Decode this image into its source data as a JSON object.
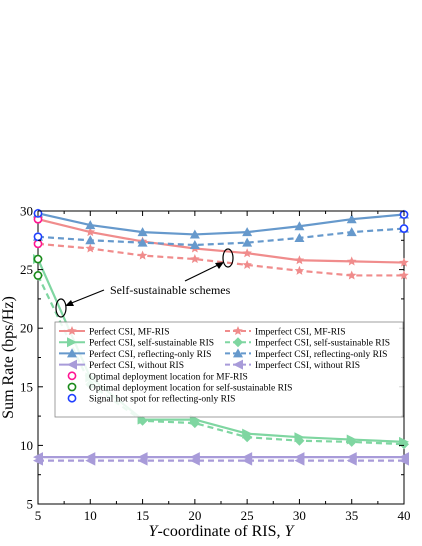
{
  "chart_data": {
    "type": "line",
    "xlabel_italic": "Y",
    "xlabel_rest": "-coordinate of RIS, ",
    "xlabel_italic_end": "Y",
    "ylabel": "Sum Rate (bps/Hz)",
    "xlim": [
      5,
      40
    ],
    "ylim": [
      5,
      30
    ],
    "xticks": [
      5,
      10,
      15,
      20,
      25,
      30,
      35,
      40
    ],
    "yticks": [
      5,
      10,
      15,
      20,
      25,
      30
    ],
    "grid": false,
    "legend_placement": "center",
    "annotation": "Self-sustainable schemes",
    "x": [
      5,
      10,
      15,
      20,
      25,
      30,
      35,
      40
    ],
    "series": [
      {
        "name": "Perfect CSI, MF-RIS",
        "color": "#f08c8c",
        "dash": false,
        "marker": "star",
        "values": [
          29.3,
          28.2,
          27.4,
          26.8,
          26.4,
          25.8,
          25.7,
          25.6
        ]
      },
      {
        "name": "Imperfect CSI, MF-RIS",
        "color": "#f08c8c",
        "dash": true,
        "marker": "star",
        "values": [
          27.2,
          26.8,
          26.2,
          25.9,
          25.4,
          24.9,
          24.5,
          24.5
        ]
      },
      {
        "name": "Perfect CSI, self-sustainable RIS",
        "color": "#7fd6a1",
        "dash": false,
        "marker": "tri-right",
        "values": [
          25.9,
          15.8,
          12.2,
          12.2,
          11.0,
          10.7,
          10.5,
          10.3
        ]
      },
      {
        "name": "Imperfect CSI, self-sustainable RIS",
        "color": "#7fd6a1",
        "dash": true,
        "marker": "diamond",
        "values": [
          24.5,
          15.2,
          12.1,
          11.9,
          10.7,
          10.4,
          10.3,
          10.1
        ]
      },
      {
        "name": "Perfect CSI, reflecting-only RIS",
        "color": "#6699cc",
        "dash": false,
        "marker": "tri-up",
        "values": [
          29.8,
          28.8,
          28.2,
          28.0,
          28.2,
          28.7,
          29.3,
          29.7
        ]
      },
      {
        "name": "Imperfect CSI, reflecting-only RIS",
        "color": "#6699cc",
        "dash": true,
        "marker": "tri-up",
        "values": [
          27.8,
          27.5,
          27.3,
          27.1,
          27.3,
          27.7,
          28.2,
          28.5
        ]
      },
      {
        "name": "Perfect CSI, without RIS",
        "color": "#a89bd9",
        "dash": false,
        "marker": "tri-left",
        "values": [
          9.0,
          9.0,
          9.0,
          9.0,
          9.0,
          9.0,
          9.0,
          9.0
        ]
      },
      {
        "name": "Imperfect CSI, without RIS",
        "color": "#a89bd9",
        "dash": true,
        "marker": "tri-left",
        "values": [
          8.7,
          8.7,
          8.7,
          8.7,
          8.7,
          8.7,
          8.7,
          8.7
        ]
      }
    ],
    "special_points": [
      {
        "name": "Optimal deployment location for MF-RIS",
        "color": "#ff1493",
        "points": [
          [
            5,
            29.3
          ],
          [
            5,
            27.2
          ]
        ]
      },
      {
        "name": "Optimal deployment location for self-sustainable RIS",
        "color": "#1a8a1a",
        "points": [
          [
            5,
            25.9
          ],
          [
            5,
            24.5
          ]
        ]
      },
      {
        "name": "Signal hot spot for reflecting-only RIS",
        "color": "#1f3fff",
        "points": [
          [
            5,
            29.8
          ],
          [
            5,
            27.8
          ],
          [
            40,
            29.7
          ],
          [
            40,
            28.5
          ]
        ]
      }
    ]
  }
}
